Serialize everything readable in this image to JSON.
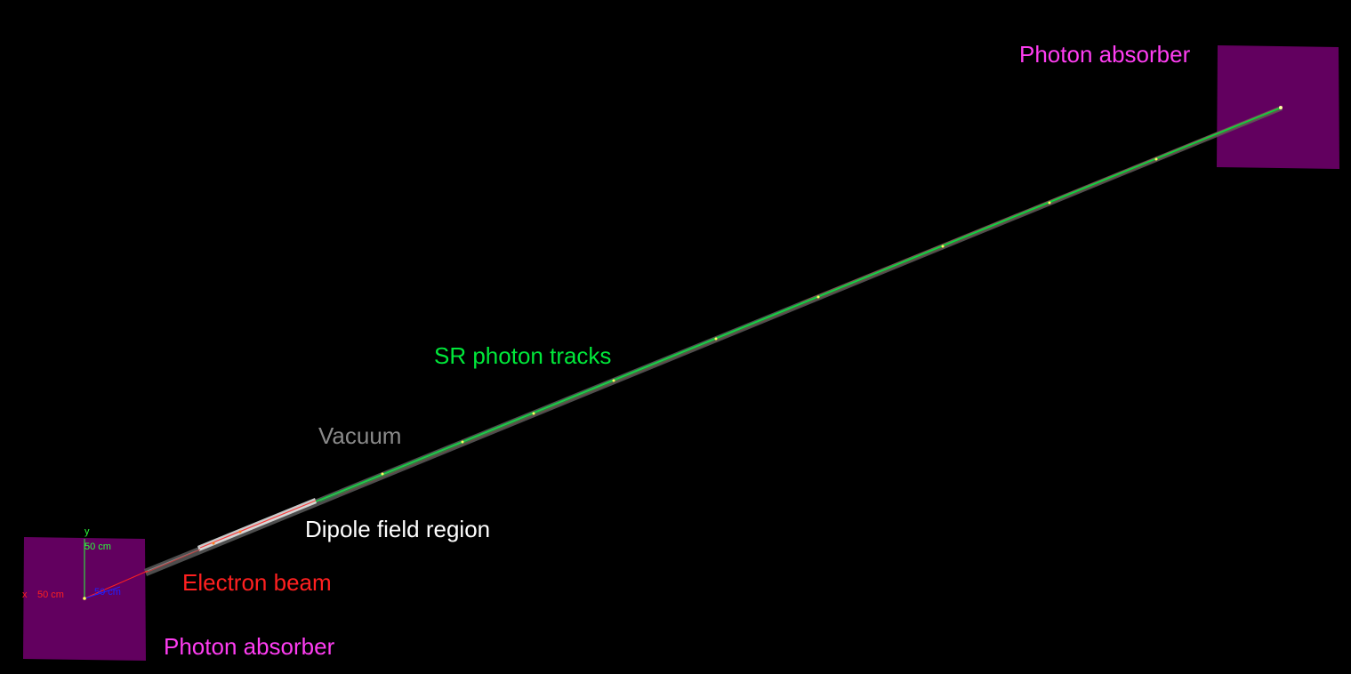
{
  "labels": {
    "absorber_top": "Photon absorber",
    "absorber_bottom": "Photon absorber",
    "sr_tracks": "SR photon tracks",
    "vacuum": "Vacuum",
    "dipole": "Dipole field region",
    "electron_beam": "Electron beam"
  },
  "axes": {
    "y_name": "y",
    "y_length": "50 cm",
    "x_name": "x",
    "x_length": "50 cm",
    "z_length": "50 cm"
  },
  "colors": {
    "background": "#000000",
    "absorber": "#62005f",
    "absorber_label": "#ff3df2",
    "sr_tracks": "#00e83a",
    "vacuum": "#8a8a8a",
    "dipole": "#ffffff",
    "electron_beam": "#ff2020",
    "axis_x": "#ff2020",
    "axis_y": "#2aff3a",
    "axis_z": "#2020ff"
  }
}
